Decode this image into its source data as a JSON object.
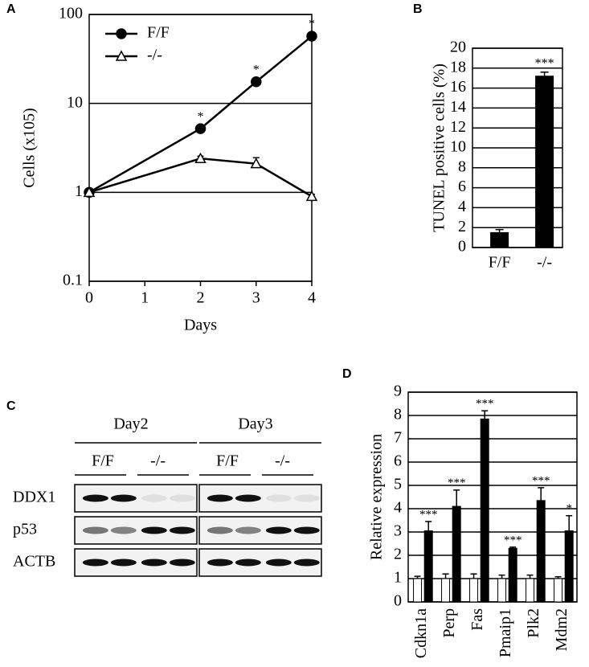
{
  "chart_data": [
    {
      "panel": "A",
      "type": "line",
      "yscale": "log",
      "ylabel": "Cells (x105)",
      "xlabel": "Days",
      "x": [
        0,
        2,
        3,
        4
      ],
      "xlim": [
        0,
        4
      ],
      "xticks": [
        0,
        1,
        2,
        3,
        4
      ],
      "ylim": [
        0.1,
        100
      ],
      "yticks": [
        0.1,
        1,
        10,
        100
      ],
      "grid": true,
      "legend": "upper left",
      "series": [
        {
          "name": "F/F",
          "color": "#000000",
          "marker": "circle",
          "values": [
            1,
            5.2,
            17.5,
            57
          ],
          "errors": [
            0.05,
            0.4,
            1.5,
            4
          ],
          "significance": [
            null,
            "*",
            "*",
            "*"
          ]
        },
        {
          "name": "-/-",
          "color": "#ffffff",
          "marker": "triangle",
          "values": [
            1,
            2.4,
            2.1,
            0.9
          ],
          "errors": [
            0.05,
            0.15,
            0.35,
            0.05
          ],
          "significance": [
            null,
            null,
            null,
            null
          ]
        }
      ]
    },
    {
      "panel": "B",
      "type": "bar",
      "ylabel": "TUNEL positive cells (%)",
      "categories": [
        "F/F",
        "-/-"
      ],
      "values": [
        1.5,
        17.2
      ],
      "errors": [
        0.3,
        0.4
      ],
      "significance": [
        null,
        "***"
      ],
      "color": "#000000",
      "ylim": [
        0,
        20
      ],
      "yticks": [
        0,
        2,
        4,
        6,
        8,
        10,
        12,
        14,
        16,
        18,
        20
      ],
      "grid": true
    },
    {
      "panel": "D",
      "type": "grouped-bar",
      "ylabel": "Relative expression",
      "categories": [
        "Cdkn1a",
        "Perp",
        "Fas",
        "Pmaip1",
        "Plk2",
        "Mdm2"
      ],
      "ylim": [
        0,
        9
      ],
      "yticks": [
        0,
        1,
        2,
        3,
        4,
        5,
        6,
        7,
        8,
        9
      ],
      "grid": true,
      "series": [
        {
          "color": "#ffffff",
          "values": [
            1,
            1,
            1,
            1,
            1,
            1
          ],
          "errors": [
            0.1,
            0.2,
            0.2,
            0.15,
            0.15,
            0.08
          ],
          "significance": [
            null,
            null,
            null,
            null,
            null,
            null
          ]
        },
        {
          "color": "#000000",
          "values": [
            3.05,
            4.1,
            7.85,
            2.3,
            4.35,
            3.05
          ],
          "errors": [
            0.4,
            0.7,
            0.35,
            0.05,
            0.55,
            0.65
          ],
          "significance": [
            "***",
            "***",
            "***",
            "***",
            "***",
            "*"
          ]
        }
      ]
    }
  ],
  "blot": {
    "panel": "C",
    "groups": [
      {
        "label": "Day2",
        "genotypes": [
          "F/F",
          "-/-"
        ]
      },
      {
        "label": "Day3",
        "genotypes": [
          "F/F",
          "-/-"
        ]
      }
    ],
    "rows": [
      "DDX1",
      "p53",
      "ACTB"
    ]
  }
}
